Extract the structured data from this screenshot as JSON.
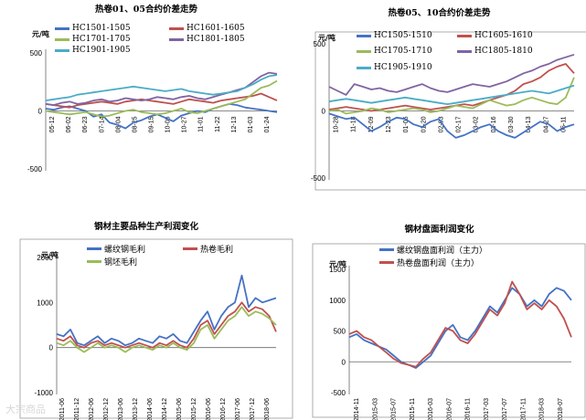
{
  "watermark": "大宗商品",
  "chart_data": [
    {
      "type": "line",
      "title": "热卷01、05合约价差走势",
      "ylabel": "元/吨",
      "ylim": [
        -500,
        500
      ],
      "yticks": [
        "500",
        "0",
        "-500"
      ],
      "yticks_v": [
        500,
        0,
        -500
      ],
      "xticks": [
        "05-12",
        "06-02",
        "06-23",
        "07-14",
        "08-04",
        "08-25",
        "09-15",
        "10-06",
        "10-27",
        "11-01",
        "11-22",
        "12-13",
        "01-03",
        "01-24"
      ],
      "series": [
        {
          "name": "HC1501-1505",
          "color": "#4472c4",
          "values": [
            20,
            10,
            30,
            40,
            20,
            0,
            -50,
            -30,
            -100,
            -120,
            -150,
            -100,
            -80,
            -50,
            -30,
            -60,
            -90,
            -40,
            -20,
            0,
            -10,
            20,
            40,
            60,
            50,
            30,
            20,
            10,
            0,
            -10
          ]
        },
        {
          "name": "HC1601-1605",
          "color": "#c0504d",
          "values": [
            60,
            50,
            40,
            30,
            50,
            60,
            70,
            80,
            70,
            60,
            80,
            90,
            100,
            90,
            80,
            70,
            60,
            80,
            100,
            90,
            80,
            70,
            90,
            100,
            110,
            120,
            130,
            150,
            120,
            90
          ]
        },
        {
          "name": "HC1701-1705",
          "color": "#9bbb59",
          "values": [
            0,
            -10,
            -20,
            -30,
            -20,
            -10,
            -30,
            -50,
            -40,
            -20,
            0,
            10,
            -10,
            -20,
            -30,
            -20,
            0,
            20,
            -10,
            -20,
            0,
            20,
            40,
            60,
            80,
            100,
            150,
            200,
            220,
            260
          ]
        },
        {
          "name": "HC1801-1805",
          "color": "#8064a2",
          "values": [
            60,
            50,
            70,
            80,
            60,
            70,
            90,
            100,
            80,
            90,
            110,
            100,
            90,
            100,
            120,
            110,
            100,
            120,
            130,
            110,
            100,
            120,
            140,
            160,
            180,
            200,
            250,
            300,
            330,
            320
          ]
        },
        {
          "name": "HC1901-1905",
          "color": "#4bacc6",
          "values": [
            90,
            100,
            110,
            120,
            140,
            150,
            160,
            170,
            180,
            190,
            200,
            210,
            200,
            190,
            180,
            170,
            180,
            190,
            170,
            160,
            150,
            140,
            150,
            160,
            170,
            200,
            230,
            270,
            300,
            310
          ]
        }
      ]
    },
    {
      "type": "line",
      "title": "热卷05、10合约价差走势",
      "ylabel": "元/吨",
      "ylim": [
        -500,
        500
      ],
      "yticks": [
        "500",
        "0",
        "-500"
      ],
      "yticks_v": [
        500,
        0,
        -500
      ],
      "xticks": [
        "10-28",
        "11-18",
        "12-09",
        "12-23",
        "01-06",
        "01-20",
        "02-03",
        "02-17",
        "03-02",
        "03-16",
        "03-30",
        "04-13",
        "04-27",
        "05-11"
      ],
      "series": [
        {
          "name": "HC1505-1510",
          "color": "#4472c4",
          "values": [
            -20,
            -40,
            -60,
            -50,
            -100,
            -150,
            -120,
            -80,
            -50,
            -60,
            -100,
            -120,
            -80,
            -60,
            -150,
            -200,
            -180,
            -150,
            -120,
            -100,
            -150,
            -180,
            -200,
            -160,
            -120,
            -80,
            -100,
            -150,
            -120,
            -100
          ]
        },
        {
          "name": "HC1605-1610",
          "color": "#c0504d",
          "values": [
            10,
            20,
            30,
            20,
            10,
            0,
            10,
            20,
            30,
            40,
            30,
            20,
            10,
            20,
            30,
            40,
            50,
            40,
            60,
            80,
            100,
            120,
            150,
            200,
            220,
            250,
            300,
            330,
            350,
            280
          ]
        },
        {
          "name": "HC1705-1710",
          "color": "#9bbb59",
          "values": [
            0,
            10,
            -20,
            -10,
            0,
            20,
            10,
            -10,
            0,
            10,
            20,
            10,
            -10,
            0,
            20,
            40,
            30,
            20,
            50,
            80,
            60,
            40,
            50,
            80,
            100,
            80,
            60,
            50,
            100,
            250
          ]
        },
        {
          "name": "HC1805-1810",
          "color": "#8064a2",
          "values": [
            180,
            150,
            120,
            200,
            180,
            160,
            170,
            150,
            140,
            160,
            180,
            200,
            170,
            150,
            140,
            160,
            180,
            200,
            190,
            180,
            200,
            220,
            250,
            280,
            300,
            330,
            350,
            380,
            400,
            420
          ]
        },
        {
          "name": "HC1905-1910",
          "color": "#4bacc6",
          "values": [
            70,
            80,
            90,
            80,
            70,
            60,
            70,
            80,
            90,
            100,
            90,
            80,
            70,
            60,
            50,
            60,
            70,
            80,
            90,
            100,
            110,
            120,
            130,
            140,
            150,
            140,
            130,
            150,
            170,
            190
          ]
        }
      ]
    },
    {
      "type": "line",
      "title": "钢材主要品种生产利润变化",
      "ylabel": "元/吨",
      "ylim": [
        -1000,
        2000
      ],
      "yticks": [
        "2000",
        "1000",
        "0",
        "-1000"
      ],
      "yticks_v": [
        2000,
        1000,
        0,
        -1000
      ],
      "xticks": [
        "2011-06",
        "2011-12",
        "2012-06",
        "2012-12",
        "2013-06",
        "2013-12",
        "2014-06",
        "2014-12",
        "2015-06",
        "2015-12",
        "2016-06",
        "2016-12",
        "2017-06",
        "2017-12",
        "2018-06"
      ],
      "series": [
        {
          "name": "螺纹钢毛利",
          "color": "#4472c4",
          "values": [
            300,
            250,
            400,
            100,
            50,
            150,
            250,
            100,
            200,
            150,
            50,
            100,
            200,
            150,
            100,
            250,
            200,
            300,
            150,
            100,
            350,
            600,
            800,
            400,
            700,
            900,
            1000,
            1600,
            900,
            1100,
            1000,
            1050,
            1100
          ]
        },
        {
          "name": "热卷毛利",
          "color": "#c0504d",
          "values": [
            200,
            150,
            250,
            50,
            0,
            100,
            150,
            50,
            100,
            50,
            0,
            50,
            100,
            50,
            0,
            100,
            50,
            150,
            50,
            0,
            200,
            500,
            600,
            300,
            500,
            700,
            800,
            1000,
            800,
            900,
            850,
            700,
            350
          ]
        },
        {
          "name": "钢坯毛利",
          "color": "#9bbb59",
          "values": [
            100,
            50,
            150,
            0,
            -100,
            0,
            100,
            0,
            50,
            0,
            -100,
            0,
            50,
            0,
            -50,
            50,
            0,
            100,
            0,
            -50,
            100,
            400,
            500,
            200,
            400,
            600,
            700,
            900,
            700,
            800,
            750,
            650,
            500
          ]
        }
      ]
    },
    {
      "type": "line",
      "title": "钢材盘面利润变化",
      "ylabel": "元/吨",
      "ylim": [
        -500,
        1500
      ],
      "yticks": [
        "1500",
        "1000",
        "500",
        "0",
        "-500"
      ],
      "yticks_v": [
        1500,
        1000,
        500,
        0,
        -500
      ],
      "xticks": [
        "2014-11",
        "2015-03",
        "2015-07",
        "2015-11",
        "2016-03",
        "2016-07",
        "2016-11",
        "2017-03",
        "2017-07",
        "2017-11",
        "2018-03",
        "2018-07"
      ],
      "series": [
        {
          "name": "螺纹钢盘面利润（主力）",
          "color": "#4472c4",
          "values": [
            400,
            450,
            350,
            300,
            250,
            200,
            100,
            0,
            -50,
            -100,
            0,
            100,
            300,
            500,
            600,
            400,
            350,
            500,
            700,
            900,
            800,
            1000,
            1200,
            1100,
            900,
            1000,
            900,
            1100,
            1200,
            1150,
            1000
          ]
        },
        {
          "name": "热卷盘面利润（主力）",
          "color": "#c0504d",
          "values": [
            450,
            500,
            400,
            350,
            250,
            150,
            50,
            -20,
            -50,
            -80,
            50,
            150,
            350,
            550,
            500,
            350,
            300,
            450,
            650,
            850,
            750,
            950,
            1300,
            1100,
            850,
            950,
            850,
            1000,
            900,
            700,
            400
          ]
        }
      ]
    }
  ]
}
